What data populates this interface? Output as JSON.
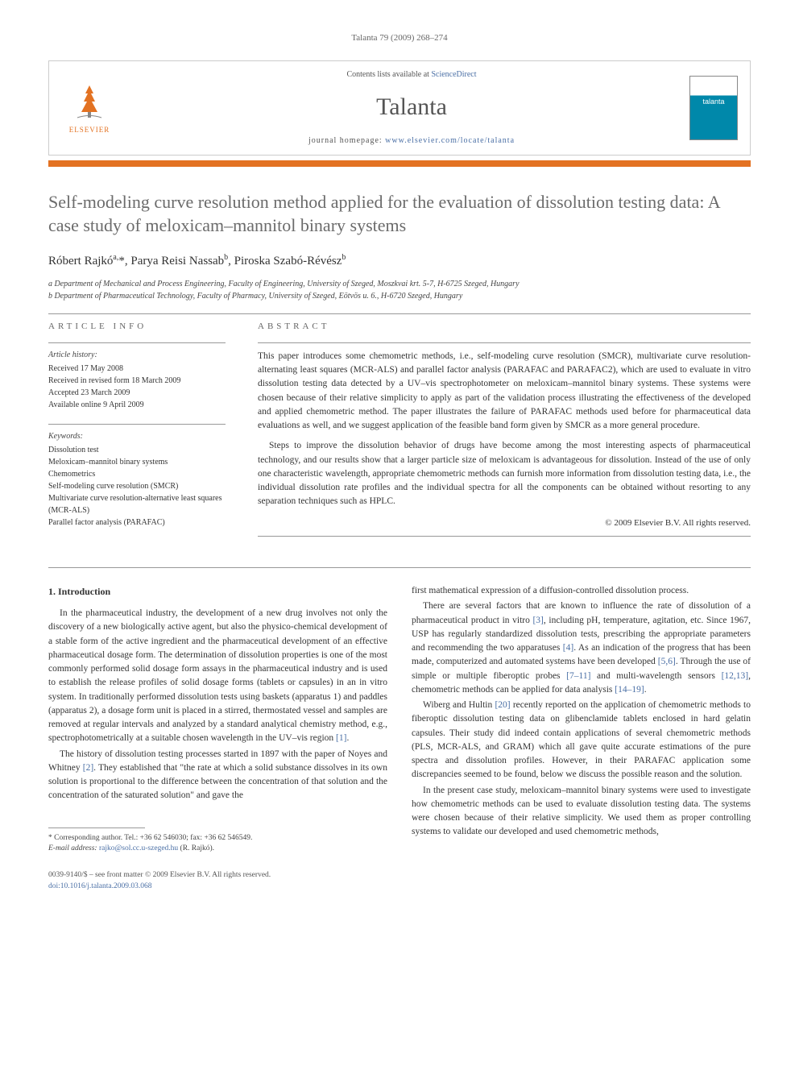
{
  "header_citation": "Talanta 79 (2009) 268–274",
  "banner": {
    "publisher": "ELSEVIER",
    "contents_prefix": "Contents lists available at ",
    "contents_link": "ScienceDirect",
    "journal_name": "Talanta",
    "homepage_prefix": "journal homepage: ",
    "homepage_url": "www.elsevier.com/locate/talanta",
    "cover_label": "talanta"
  },
  "title": "Self-modeling curve resolution method applied for the evaluation of dissolution testing data: A case study of meloxicam–mannitol binary systems",
  "authors_html": "Róbert Rajkó<sup>a,</sup>*, Parya Reisi Nassab<sup>b</sup>, Piroska Szabó-Révész<sup>b</sup>",
  "affiliations": [
    "a Department of Mechanical and Process Engineering, Faculty of Engineering, University of Szeged, Moszkvai krt. 5-7, H-6725 Szeged, Hungary",
    "b Department of Pharmaceutical Technology, Faculty of Pharmacy, University of Szeged, Eötvös u. 6., H-6720 Szeged, Hungary"
  ],
  "article_info": {
    "heading": "ARTICLE INFO",
    "history_label": "Article history:",
    "history": [
      "Received 17 May 2008",
      "Received in revised form 18 March 2009",
      "Accepted 23 March 2009",
      "Available online 9 April 2009"
    ],
    "keywords_label": "Keywords:",
    "keywords": [
      "Dissolution test",
      "Meloxicam–mannitol binary systems",
      "Chemometrics",
      "Self-modeling curve resolution (SMCR)",
      "Multivariate curve resolution-alternative least squares (MCR-ALS)",
      "Parallel factor analysis (PARAFAC)"
    ]
  },
  "abstract": {
    "heading": "ABSTRACT",
    "paragraphs": [
      "This paper introduces some chemometric methods, i.e., self-modeling curve resolution (SMCR), multivariate curve resolution-alternating least squares (MCR-ALS) and parallel factor analysis (PARAFAC and PARAFAC2), which are used to evaluate in vitro dissolution testing data detected by a UV–vis spectrophotometer on meloxicam–mannitol binary systems. These systems were chosen because of their relative simplicity to apply as part of the validation process illustrating the effectiveness of the developed and applied chemometric method. The paper illustrates the failure of PARAFAC methods used before for pharmaceutical data evaluations as well, and we suggest application of the feasible band form given by SMCR as a more general procedure.",
      "Steps to improve the dissolution behavior of drugs have become among the most interesting aspects of pharmaceutical technology, and our results show that a larger particle size of meloxicam is advantageous for dissolution. Instead of the use of only one characteristic wavelength, appropriate chemometric methods can furnish more information from dissolution testing data, i.e., the individual dissolution rate profiles and the individual spectra for all the components can be obtained without resorting to any separation techniques such as HPLC."
    ],
    "copyright": "© 2009 Elsevier B.V. All rights reserved."
  },
  "body": {
    "section_number": "1.",
    "section_title": "Introduction",
    "left_paragraphs": [
      "In the pharmaceutical industry, the development of a new drug involves not only the discovery of a new biologically active agent, but also the physico-chemical development of a stable form of the active ingredient and the pharmaceutical development of an effective pharmaceutical dosage form. The determination of dissolution properties is one of the most commonly performed solid dosage form assays in the pharmaceutical industry and is used to establish the release profiles of solid dosage forms (tablets or capsules) in an in vitro system. In traditionally performed dissolution tests using baskets (apparatus 1) and paddles (apparatus 2), a dosage form unit is placed in a stirred, thermostated vessel and samples are removed at regular intervals and analyzed by a standard analytical chemistry method, e.g., spectrophotometrically at a suitable chosen wavelength in the UV–vis region [1].",
      "The history of dissolution testing processes started in 1897 with the paper of Noyes and Whitney [2]. They established that \"the rate at which a solid substance dissolves in its own solution is proportional to the difference between the concentration of that solution and the concentration of the saturated solution\" and gave the"
    ],
    "right_paragraphs": [
      "first mathematical expression of a diffusion-controlled dissolution process.",
      "There are several factors that are known to influence the rate of dissolution of a pharmaceutical product in vitro [3], including pH, temperature, agitation, etc. Since 1967, USP has regularly standardized dissolution tests, prescribing the appropriate parameters and recommending the two apparatuses [4]. As an indication of the progress that has been made, computerized and automated systems have been developed [5,6]. Through the use of simple or multiple fiberoptic probes [7–11] and multi-wavelength sensors [12,13], chemometric methods can be applied for data analysis [14–19].",
      "Wiberg and Hultin [20] recently reported on the application of chemometric methods to fiberoptic dissolution testing data on glibenclamide tablets enclosed in hard gelatin capsules. Their study did indeed contain applications of several chemometric methods (PLS, MCR-ALS, and GRAM) which all gave quite accurate estimations of the pure spectra and dissolution profiles. However, in their PARAFAC application some discrepancies seemed to be found, below we discuss the possible reason and the solution.",
      "In the present case study, meloxicam–mannitol binary systems were used to investigate how chemometric methods can be used to evaluate dissolution testing data. The systems were chosen because of their relative simplicity. We used them as proper controlling systems to validate our developed and used chemometric methods,"
    ]
  },
  "footnotes": {
    "corresponding": "* Corresponding author. Tel.: +36 62 546030; fax: +36 62 546549.",
    "email_label": "E-mail address: ",
    "email": "rajko@sol.cc.u-szeged.hu",
    "email_suffix": " (R. Rajkó)."
  },
  "footer": {
    "issn_line": "0039-9140/$ – see front matter © 2009 Elsevier B.V. All rights reserved.",
    "doi": "doi:10.1016/j.talanta.2009.03.068"
  },
  "colors": {
    "orange": "#e37222",
    "link": "#4a6fa5",
    "teal": "#0088aa",
    "heading_grey": "#6b6b6b"
  }
}
